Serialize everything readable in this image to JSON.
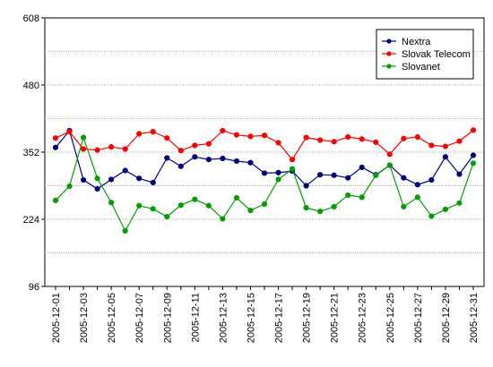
{
  "chart_data": {
    "type": "line",
    "xlabel": "",
    "ylabel": "",
    "ylim": [
      96,
      608
    ],
    "yticks": [
      96,
      224,
      352,
      480,
      608
    ],
    "grid": true,
    "legend_position": "top-right",
    "x": [
      "2005-12-01",
      "2005-12-02",
      "2005-12-03",
      "2005-12-04",
      "2005-12-05",
      "2005-12-06",
      "2005-12-07",
      "2005-12-08",
      "2005-12-09",
      "2005-12-10",
      "2005-12-11",
      "2005-12-12",
      "2005-12-13",
      "2005-12-14",
      "2005-12-15",
      "2005-12-16",
      "2005-12-17",
      "2005-12-18",
      "2005-12-19",
      "2005-12-20",
      "2005-12-21",
      "2005-12-22",
      "2005-12-23",
      "2005-12-24",
      "2005-12-25",
      "2005-12-26",
      "2005-12-27",
      "2005-12-28",
      "2005-12-29",
      "2005-12-30",
      "2005-12-31"
    ],
    "xtick_labels": [
      "2005-12-01",
      "2005-12-03",
      "2005-12-05",
      "2005-12-07",
      "2005-12-09",
      "2005-12-11",
      "2005-12-13",
      "2005-12-15",
      "2005-12-17",
      "2005-12-19",
      "2005-12-21",
      "2005-12-23",
      "2005-12-25",
      "2005-12-27",
      "2005-12-29",
      "2005-12-31"
    ],
    "series": [
      {
        "name": "Nextra",
        "color": "#000080",
        "values": [
          361,
          393,
          299,
          282,
          300,
          317,
          302,
          294,
          341,
          325,
          343,
          338,
          340,
          335,
          332,
          312,
          313,
          316,
          288,
          309,
          308,
          303,
          323,
          309,
          327,
          303,
          290,
          299,
          343,
          310,
          346
        ]
      },
      {
        "name": "Slovak Telecom",
        "color": "#ff0000",
        "values": [
          379,
          391,
          358,
          356,
          362,
          358,
          387,
          391,
          379,
          355,
          365,
          368,
          393,
          385,
          382,
          384,
          370,
          338,
          380,
          375,
          372,
          381,
          377,
          371,
          348,
          378,
          381,
          365,
          363,
          373,
          394
        ]
      },
      {
        "name": "Slovanet",
        "color": "#00a000",
        "values": [
          260,
          287,
          380,
          302,
          256,
          202,
          250,
          244,
          229,
          251,
          262,
          250,
          225,
          265,
          241,
          253,
          300,
          320,
          246,
          239,
          248,
          270,
          266,
          308,
          327,
          248,
          266,
          230,
          243,
          255,
          331
        ]
      }
    ]
  }
}
